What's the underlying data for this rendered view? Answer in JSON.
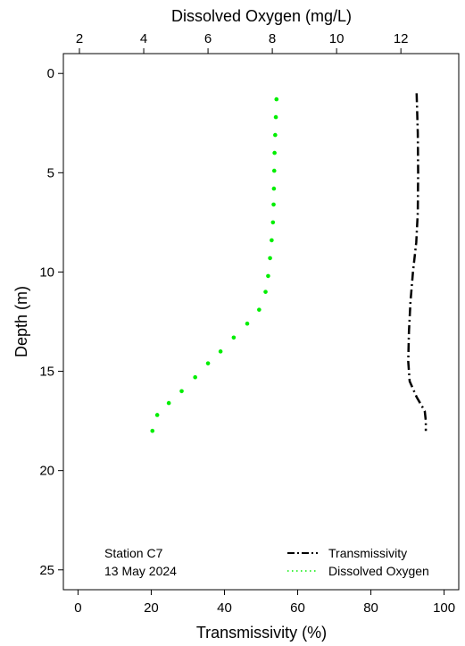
{
  "chart_data": {
    "type": "line",
    "y_axis": {
      "label": "Depth (m)",
      "range": [
        -1,
        26
      ],
      "ticks": [
        0,
        5,
        10,
        15,
        20,
        25
      ],
      "inverted": true
    },
    "x_axis_bottom": {
      "label": "Transmissivity (%)",
      "range": [
        -4,
        104
      ],
      "ticks": [
        0,
        20,
        40,
        60,
        80,
        100
      ]
    },
    "x_axis_top": {
      "label": "Dissolved Oxygen (mg/L)",
      "range": [
        1.5,
        13.8
      ],
      "ticks": [
        2,
        4,
        6,
        8,
        10,
        12
      ]
    },
    "grid": false,
    "annotation": {
      "line1": "Station C7",
      "line2": "13 May 2024"
    },
    "legend": {
      "placement": "bottom-right",
      "entries": [
        "Transmissivity",
        "Dissolved Oxygen"
      ]
    },
    "series": [
      {
        "name": "Transmissivity",
        "axis": "bottom",
        "style": "dash-dot",
        "color": "#000000",
        "points": [
          {
            "x": 92.5,
            "y": 1.0
          },
          {
            "x": 92.8,
            "y": 3.0
          },
          {
            "x": 92.9,
            "y": 5.0
          },
          {
            "x": 92.8,
            "y": 7.0
          },
          {
            "x": 92.4,
            "y": 8.5
          },
          {
            "x": 91.5,
            "y": 10.0
          },
          {
            "x": 90.8,
            "y": 11.5
          },
          {
            "x": 90.4,
            "y": 13.0
          },
          {
            "x": 90.2,
            "y": 14.5
          },
          {
            "x": 90.6,
            "y": 15.5
          },
          {
            "x": 92.5,
            "y": 16.3
          },
          {
            "x": 94.7,
            "y": 17.0
          },
          {
            "x": 95.0,
            "y": 17.5
          },
          {
            "x": 95.0,
            "y": 18.0
          }
        ]
      },
      {
        "name": "Dissolved Oxygen",
        "axis": "top",
        "style": "dotted",
        "color": "#00ee00",
        "points": [
          {
            "x": 8.13,
            "y": 1.3
          },
          {
            "x": 8.11,
            "y": 2.2
          },
          {
            "x": 8.09,
            "y": 3.1
          },
          {
            "x": 8.07,
            "y": 4.0
          },
          {
            "x": 8.06,
            "y": 4.9
          },
          {
            "x": 8.05,
            "y": 5.8
          },
          {
            "x": 8.04,
            "y": 6.6
          },
          {
            "x": 8.02,
            "y": 7.5
          },
          {
            "x": 7.98,
            "y": 8.4
          },
          {
            "x": 7.93,
            "y": 9.3
          },
          {
            "x": 7.87,
            "y": 10.2
          },
          {
            "x": 7.79,
            "y": 11.0
          },
          {
            "x": 7.59,
            "y": 11.9
          },
          {
            "x": 7.22,
            "y": 12.6
          },
          {
            "x": 6.8,
            "y": 13.3
          },
          {
            "x": 6.39,
            "y": 14.0
          },
          {
            "x": 6.0,
            "y": 14.6
          },
          {
            "x": 5.6,
            "y": 15.3
          },
          {
            "x": 5.18,
            "y": 16.0
          },
          {
            "x": 4.78,
            "y": 16.6
          },
          {
            "x": 4.42,
            "y": 17.2
          },
          {
            "x": 4.27,
            "y": 18.0
          }
        ]
      }
    ]
  }
}
